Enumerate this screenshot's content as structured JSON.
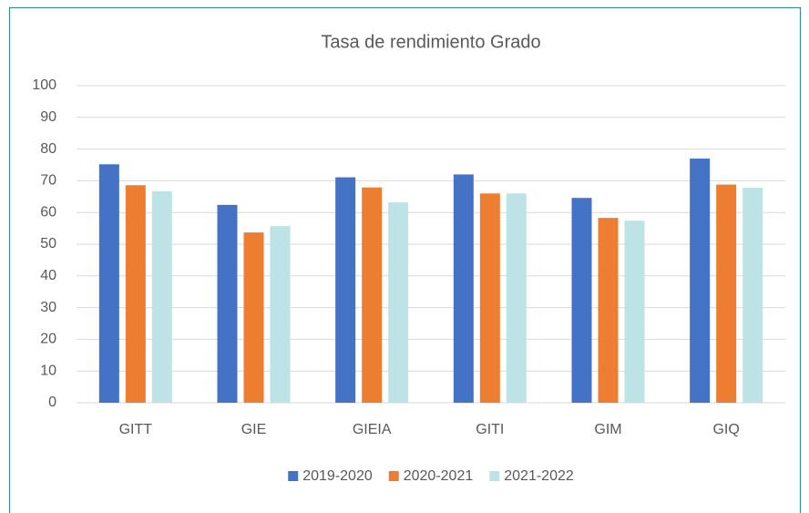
{
  "chart_data": {
    "type": "bar",
    "title": "Tasa de rendimiento Grado",
    "categories": [
      "GITT",
      "GIE",
      "GIEIA",
      "GITI",
      "GIM",
      "GIQ"
    ],
    "series": [
      {
        "name": "2019-2020",
        "color": "#4472c4",
        "values": [
          75.2,
          62.4,
          71.1,
          72,
          64.6,
          77
        ]
      },
      {
        "name": "2020-2021",
        "color": "#ed7d31",
        "values": [
          68.6,
          53.7,
          67.9,
          66,
          58.3,
          68.8
        ]
      },
      {
        "name": "2021-2022",
        "color": "#bde3e6",
        "values": [
          66.7,
          55.7,
          63.2,
          66,
          57.4,
          67.8
        ]
      }
    ],
    "ylim": [
      0,
      100
    ],
    "yticks": [
      0,
      10,
      20,
      30,
      40,
      50,
      60,
      70,
      80,
      90,
      100
    ],
    "grid": true,
    "legend": "bottom"
  }
}
